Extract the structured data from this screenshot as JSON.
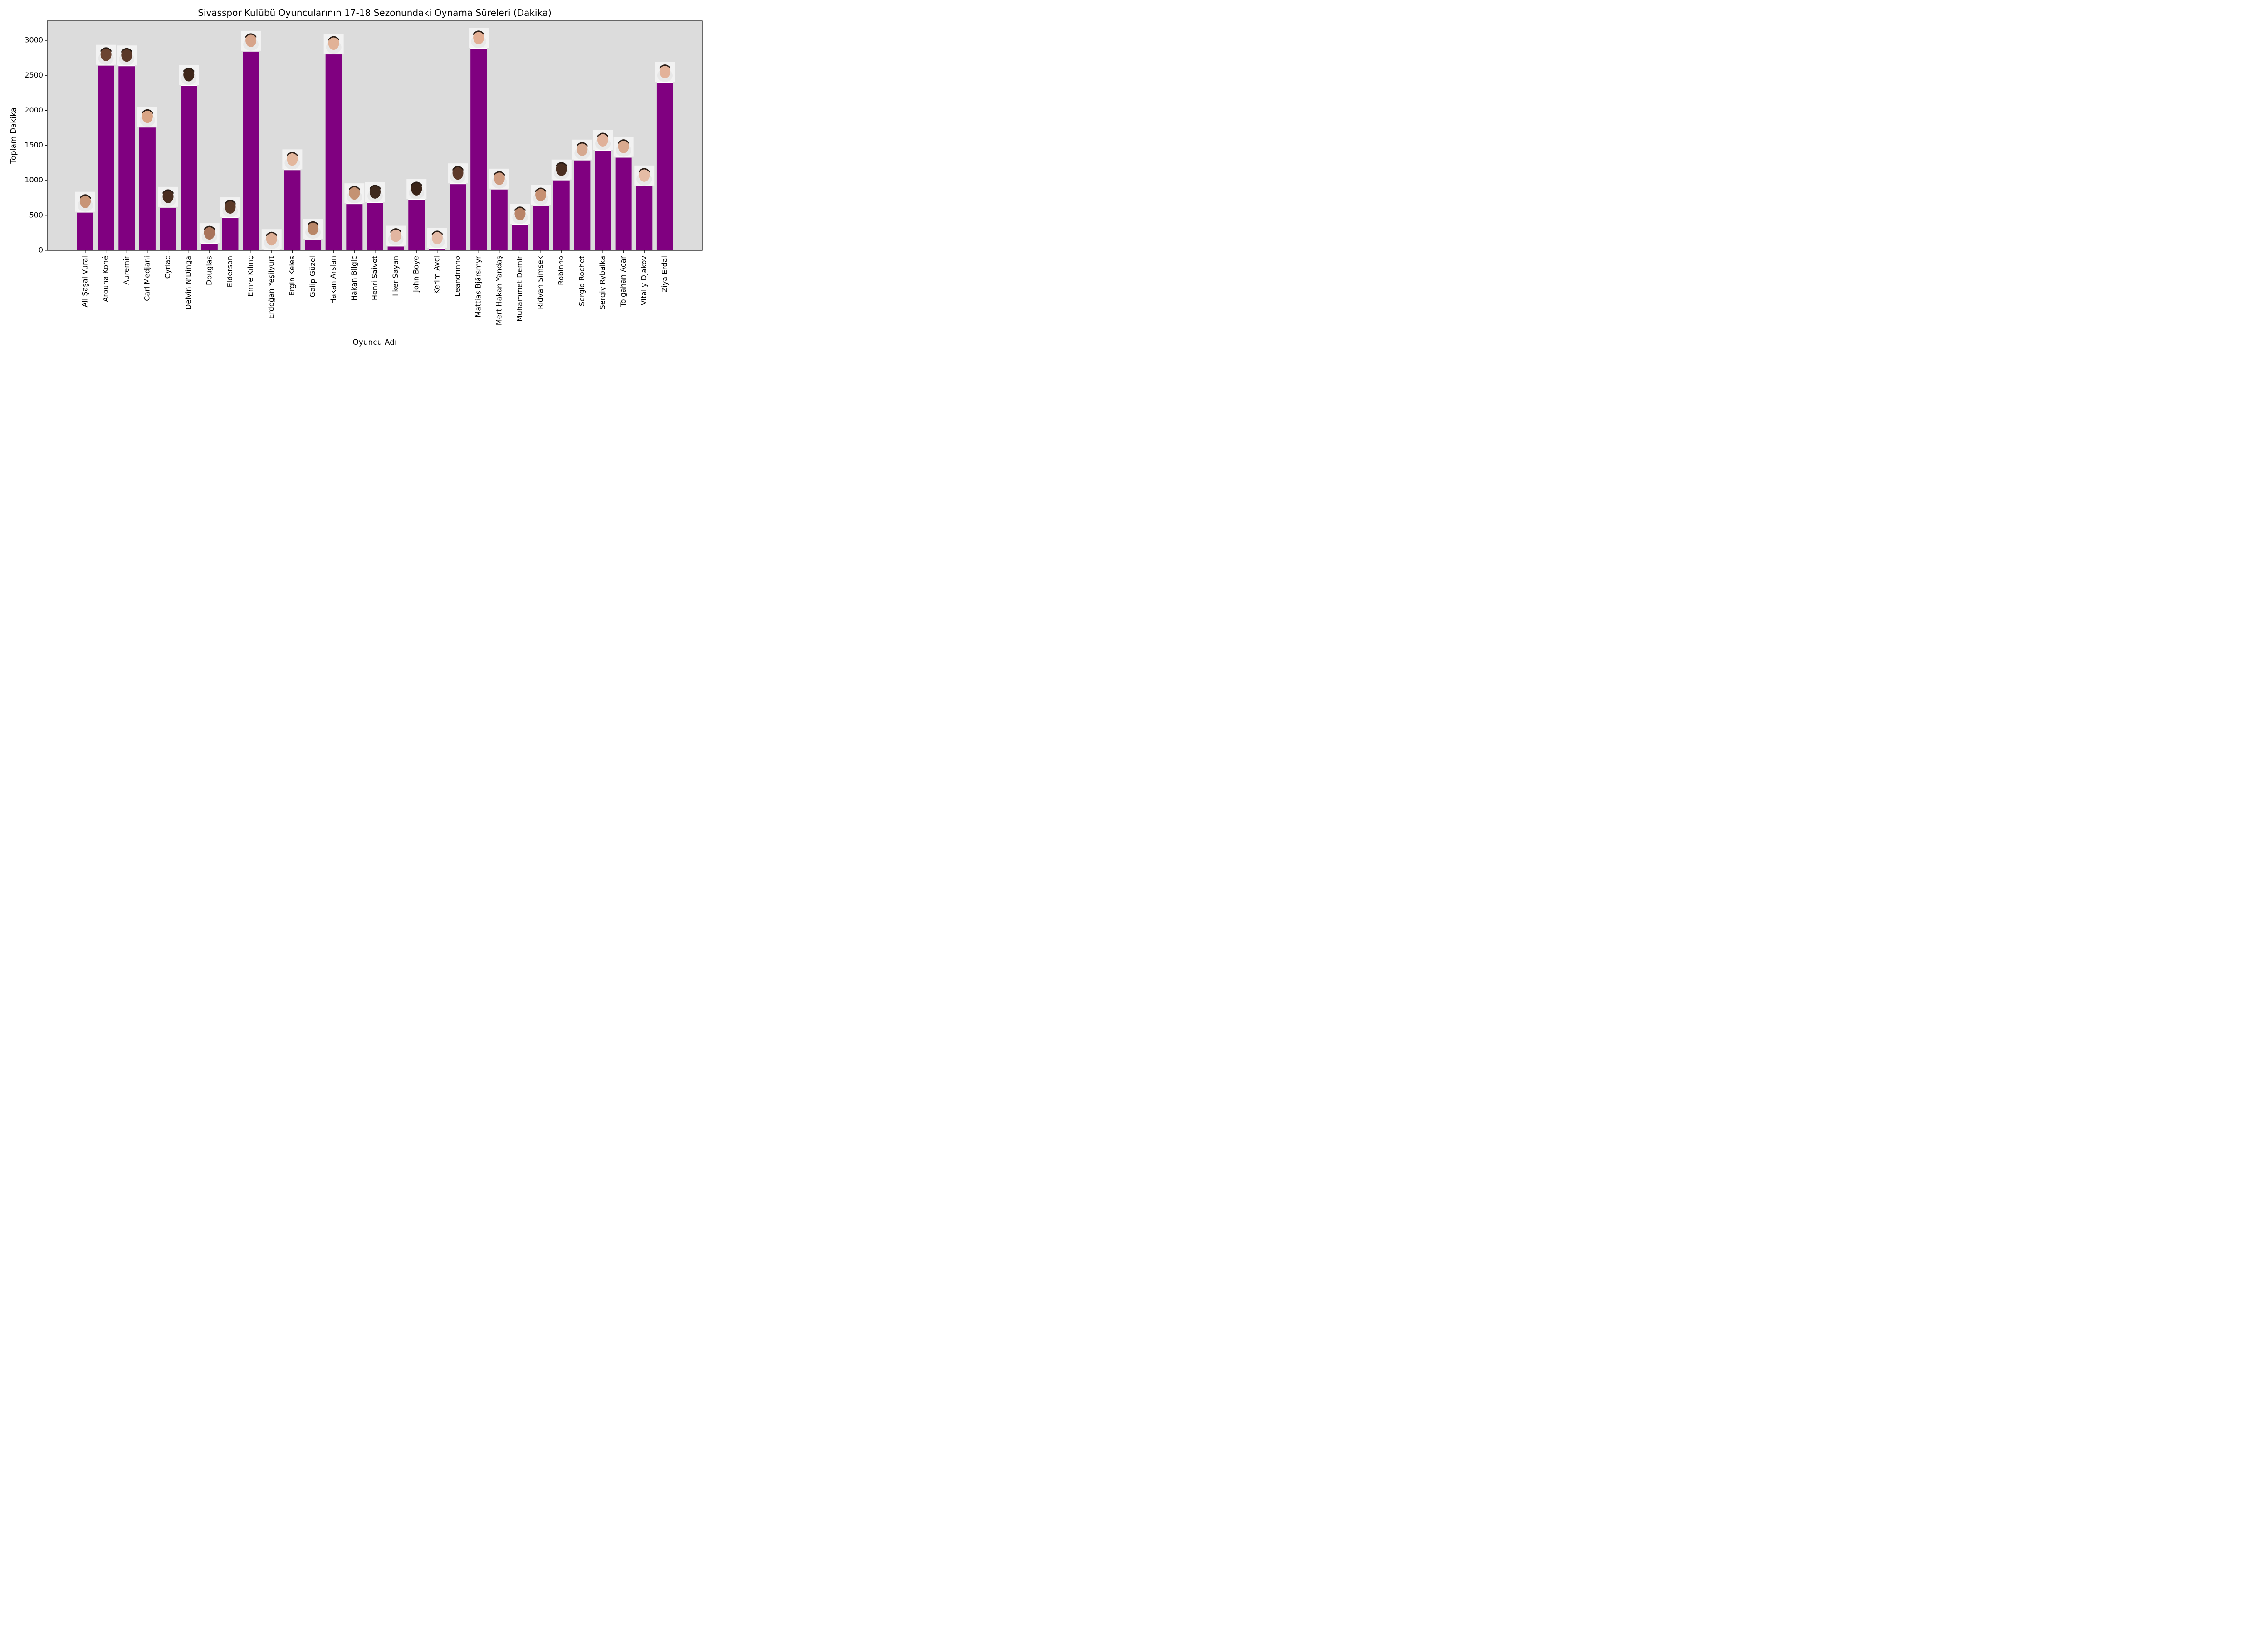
{
  "chart_data": {
    "type": "bar",
    "title": "Sivasspor Kulübü Oyuncularının 17-18 Sezonundaki Oynama Süreleri (Dakika)",
    "xlabel": "Oyuncu Adı",
    "ylabel": "Toplam Dakika",
    "ylim": [
      0,
      3280
    ],
    "yticks": [
      0,
      500,
      1000,
      1500,
      2000,
      2500,
      3000
    ],
    "grid": false,
    "bar_color": "#800080",
    "plot_background": "#dcdcdc",
    "categories": [
      "Ali Şaşal Vural",
      "Arouna Koné",
      "Auremir",
      "Carl Medjani",
      "Cyriac",
      "Delvin N'Dinga",
      "Douglas",
      "Elderson",
      "Emre Kılınç",
      "Erdoğan Yeşilyurt",
      "Ergin Keles",
      "Galip Güzel",
      "Hakan Arslan",
      "Hakan Bilgic",
      "Henri Saivet",
      "Ilker Sayan",
      "John Boye",
      "Kerim Avci",
      "Leandrinho",
      "Mattias Bjärsmyr",
      "Mert Hakan Yandaş",
      "Muhammet Demir",
      "Ridvan Simsek",
      "Robinho",
      "Sergio Rochet",
      "Sergiy Rybalka",
      "Tolgahan Acar",
      "Vitaliy Djakov",
      "Ziya Erdal"
    ],
    "values": [
      540,
      2640,
      2630,
      1755,
      610,
      2350,
      90,
      460,
      2840,
      5,
      1145,
      155,
      2800,
      660,
      675,
      55,
      720,
      20,
      945,
      2880,
      870,
      365,
      635,
      1000,
      1285,
      1420,
      1325,
      915,
      2395
    ]
  }
}
